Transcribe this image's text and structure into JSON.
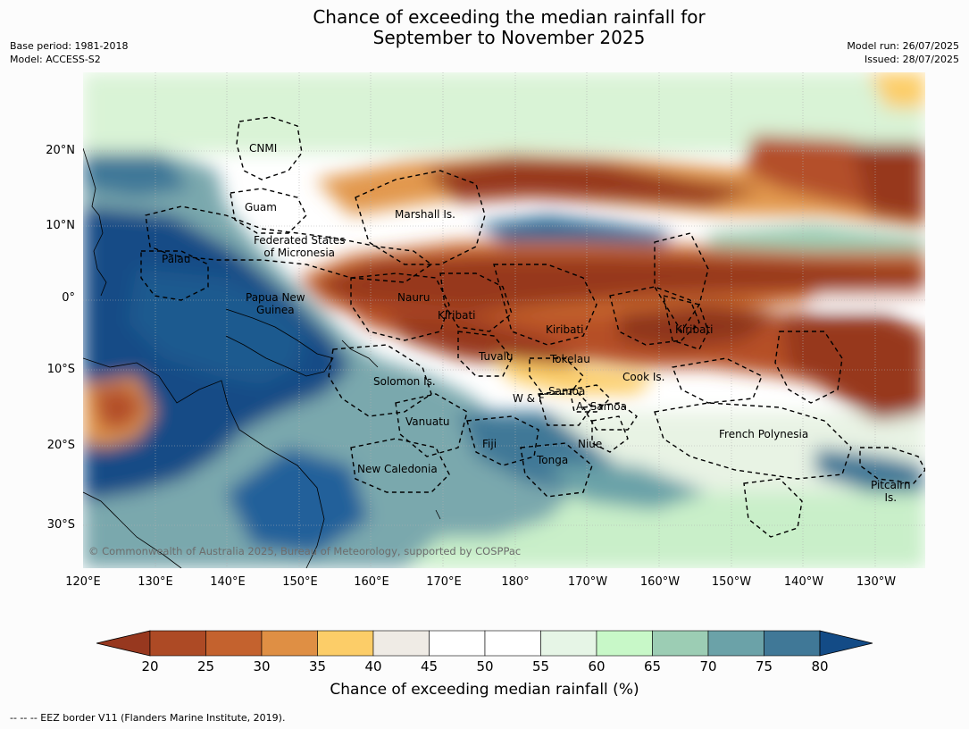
{
  "title_line1": "Chance of exceeding the median rainfall for",
  "title_line2": "September to November 2025",
  "meta_left": [
    "Base period: 1981-2018",
    "Model: ACCESS-S2"
  ],
  "meta_right": [
    "Model run: 26/07/2025",
    "Issued: 28/07/2025"
  ],
  "lon_labels": [
    "120°E",
    "130°E",
    "140°E",
    "150°E",
    "160°E",
    "170°E",
    "180°",
    "170°W",
    "160°W",
    "150°W",
    "140°W",
    "130°W"
  ],
  "lat_labels": [
    "20°N",
    "10°N",
    "0°",
    "10°S",
    "20°S",
    "30°S"
  ],
  "regions": [
    {
      "name": "cnmi",
      "text": "CNMI"
    },
    {
      "name": "guam",
      "text": "Guam"
    },
    {
      "name": "marshall",
      "text": "Marshall Is."
    },
    {
      "name": "fsm",
      "text": "Federated States\nof Micronesia"
    },
    {
      "name": "palau",
      "text": "Palau"
    },
    {
      "name": "png",
      "text": "Papua New\nGuinea"
    },
    {
      "name": "nauru",
      "text": "Nauru"
    },
    {
      "name": "kiribati-west",
      "text": "Kiribati"
    },
    {
      "name": "kiribati-central",
      "text": "Kiribati"
    },
    {
      "name": "kiribati-east",
      "text": "Kiribati"
    },
    {
      "name": "tuvalu",
      "text": "Tuvalu"
    },
    {
      "name": "tokelau",
      "text": "Tokelau"
    },
    {
      "name": "solomon",
      "text": "Solomon Is."
    },
    {
      "name": "cook",
      "text": "Cook Is."
    },
    {
      "name": "samoa",
      "text": "Samoa"
    },
    {
      "name": "wallis",
      "text": "W & F"
    },
    {
      "name": "american-samoa",
      "text": "A. Samoa"
    },
    {
      "name": "vanuatu",
      "text": "Vanuatu"
    },
    {
      "name": "french-polynesia",
      "text": "French Polynesia"
    },
    {
      "name": "fiji",
      "text": "Fiji"
    },
    {
      "name": "niue",
      "text": "Niue"
    },
    {
      "name": "tonga",
      "text": "Tonga"
    },
    {
      "name": "new-caledonia",
      "text": "New Caledonia"
    },
    {
      "name": "pitcairn",
      "text": "Pitcairn\nIs."
    }
  ],
  "copyright": "© Commonwealth of Australia 2025, Bureau of Meteorology, supported by COSPPac",
  "colorbar": {
    "ticks": [
      "20",
      "25",
      "30",
      "35",
      "40",
      "45",
      "50",
      "55",
      "60",
      "65",
      "70",
      "75",
      "80"
    ],
    "colors": [
      "#ad4a25",
      "#c4622e",
      "#df8f44",
      "#fccd68",
      "#efebe5",
      "#ffffff",
      "#ffffff",
      "#e6f5e6",
      "#c8f8c8",
      "#9ccdb4",
      "#6ba2a8",
      "#407897"
    ],
    "under_color": "#97381f",
    "over_color": "#134b86",
    "label": "Chance of exceeding median rainfall (%)"
  },
  "footnote": "--  --  -- EEZ border V11 (Flanders Marine Institute, 2019)."
}
